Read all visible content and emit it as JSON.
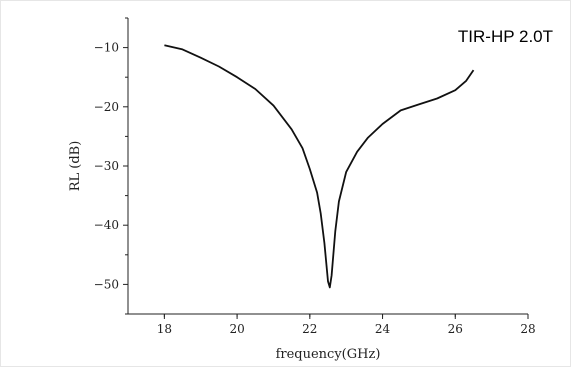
{
  "chart_data": {
    "type": "line",
    "title": "",
    "xlabel": "frequency(GHz)",
    "ylabel": "RL (dB)",
    "xlim": [
      17,
      28
    ],
    "ylim": [
      -55,
      -5
    ],
    "xticks": [
      18,
      20,
      22,
      24,
      26,
      28
    ],
    "yticks": [
      -10,
      -20,
      -30,
      -40,
      -50
    ],
    "xtick_labels": [
      "18",
      "20",
      "22",
      "24",
      "26",
      "28"
    ],
    "ytick_labels": [
      "−10",
      "−20",
      "−30",
      "−40",
      "−50"
    ],
    "grid": false,
    "annotations": [
      {
        "text": "TIR-HP 2.0T",
        "position": "top-right"
      }
    ],
    "series": [
      {
        "color": "#111111",
        "x": [
          18.0,
          18.5,
          19.0,
          19.5,
          20.0,
          20.5,
          21.0,
          21.5,
          21.8,
          22.0,
          22.2,
          22.3,
          22.4,
          22.5,
          22.55,
          22.6,
          22.7,
          22.8,
          23.0,
          23.3,
          23.6,
          24.0,
          24.5,
          25.0,
          25.5,
          26.0,
          26.3,
          26.5
        ],
        "y": [
          -9.6,
          -10.3,
          -11.7,
          -13.2,
          -15.0,
          -17.0,
          -19.8,
          -23.8,
          -27.0,
          -30.5,
          -34.5,
          -38.0,
          -43.0,
          -49.5,
          -50.5,
          -48.5,
          -41.0,
          -36.0,
          -31.0,
          -27.6,
          -25.2,
          -22.9,
          -20.6,
          -19.6,
          -18.6,
          -17.2,
          -15.6,
          -13.8
        ]
      }
    ]
  }
}
